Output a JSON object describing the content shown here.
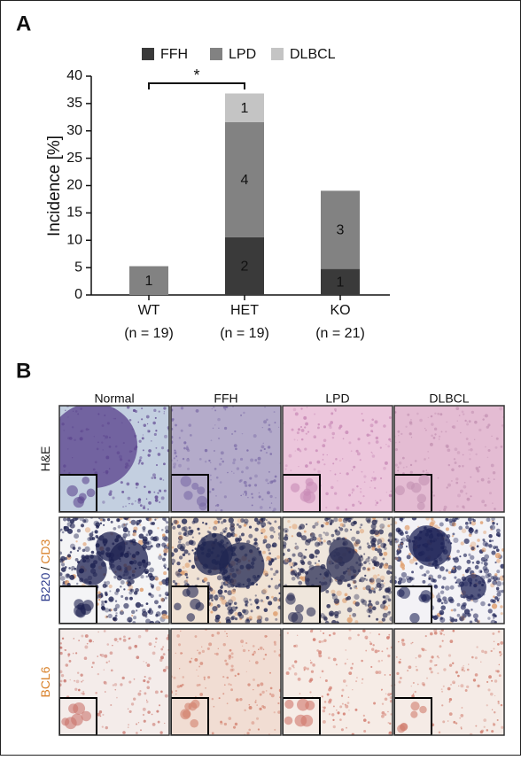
{
  "panel_a": {
    "label": "A"
  },
  "chart_data": {
    "type": "stacked-bar",
    "categories": [
      "WT",
      "HET",
      "KO"
    ],
    "category_sublabels": [
      "(n = 19)",
      "(n = 19)",
      "(n = 21)"
    ],
    "series": [
      {
        "name": "FFH",
        "color": "#3a3a3a",
        "values": [
          null,
          10.53,
          4.76
        ],
        "counts": [
          null,
          2,
          1
        ]
      },
      {
        "name": "LPD",
        "color": "#828282",
        "values": [
          5.26,
          21.05,
          14.29
        ],
        "counts": [
          1,
          4,
          3
        ]
      },
      {
        "name": "DLBCL",
        "color": "#c4c4c4",
        "values": [
          null,
          5.26,
          null
        ],
        "counts": [
          null,
          1,
          null
        ]
      }
    ],
    "y_label": "Incidence [%]",
    "ylim": [
      0,
      40
    ],
    "yticks": [
      0,
      5,
      10,
      15,
      20,
      25,
      30,
      35,
      40
    ],
    "annotation": "*",
    "legend": "top"
  },
  "panel_b": {
    "label": "B",
    "columns": [
      "Normal",
      "FFH",
      "LPD",
      "DLBCL"
    ],
    "rows": [
      [
        "H&E"
      ],
      [
        "B220",
        "/",
        "CD3"
      ],
      [
        "BCL6"
      ]
    ]
  }
}
